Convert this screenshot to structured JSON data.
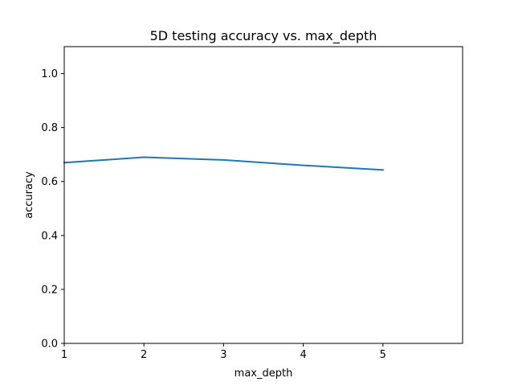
{
  "chart_data": {
    "type": "line",
    "title": "5D testing accuracy vs. max_depth",
    "xlabel": "max_depth",
    "ylabel": "accuracy",
    "xlim": [
      1,
      6
    ],
    "ylim": [
      0.0,
      1.1
    ],
    "xticks": [
      1,
      2,
      3,
      4,
      5
    ],
    "xtick_labels": [
      "1",
      "2",
      "3",
      "4",
      "5"
    ],
    "yticks": [
      0.0,
      0.2,
      0.4,
      0.6,
      0.8,
      1.0
    ],
    "ytick_labels": [
      "0.0",
      "0.2",
      "0.4",
      "0.6",
      "0.8",
      "1.0"
    ],
    "grid": false,
    "series": [
      {
        "color": "#1f77b4",
        "x": [
          1,
          2,
          3,
          4,
          5
        ],
        "y": [
          0.67,
          0.69,
          0.68,
          0.66,
          0.643
        ]
      }
    ]
  }
}
